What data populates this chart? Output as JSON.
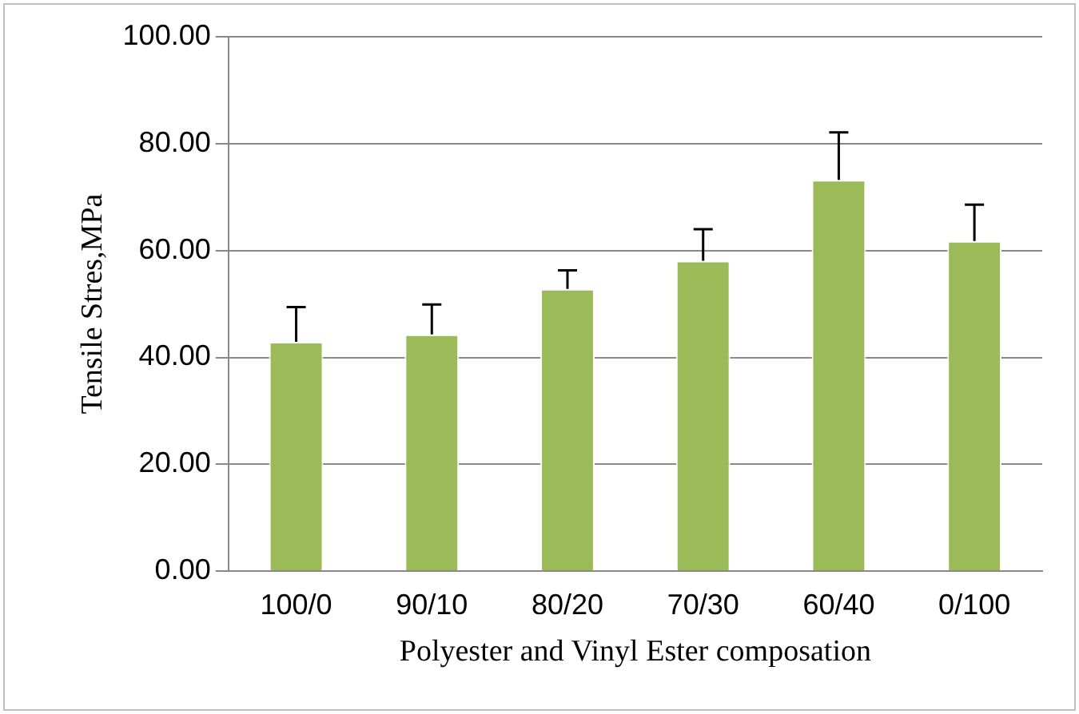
{
  "chart_data": {
    "type": "bar",
    "xlabel": "Polyester and Vinyl Ester composation",
    "ylabel": "Tensile Stres,MPa",
    "categories": [
      "100/0",
      "90/10",
      "80/20",
      "70/30",
      "60/40",
      "0/100"
    ],
    "values": [
      42.9,
      44.3,
      52.8,
      58.1,
      73.2,
      61.8
    ],
    "errors": [
      [
        42.9,
        49.4
      ],
      [
        44.3,
        49.9
      ],
      [
        52.8,
        56.3
      ],
      [
        58.1,
        64.0
      ],
      [
        73.2,
        82.1
      ],
      [
        61.8,
        68.6
      ]
    ],
    "color": "#9bbb59",
    "ylim": [
      0,
      100
    ],
    "yticks": [
      {
        "value": 0,
        "label": "0.00"
      },
      {
        "value": 20,
        "label": "20.00"
      },
      {
        "value": 40,
        "label": "40.00"
      },
      {
        "value": 60,
        "label": "60.00"
      },
      {
        "value": 80,
        "label": "80.00"
      },
      {
        "value": 100,
        "label": "100.00"
      }
    ],
    "grid": "y",
    "legend": false
  }
}
